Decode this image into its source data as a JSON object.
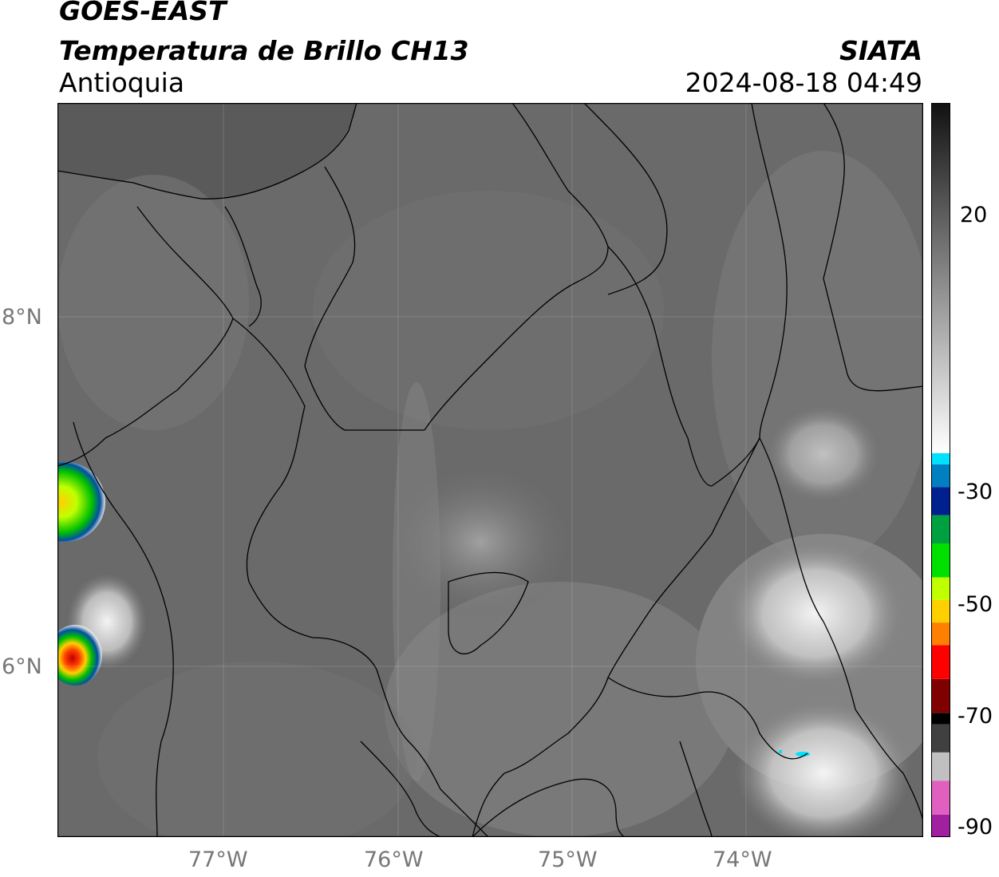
{
  "header": {
    "satellite": "GOES-EAST",
    "product": "Temperatura de Brillo CH13",
    "region": "Antioquia",
    "source": "SIATA",
    "timestamp": "2024-08-18 04:49"
  },
  "map": {
    "lon_range": [
      -77.97,
      -73.05
    ],
    "lat_range": [
      4.96,
      9.15
    ],
    "lon_ticks": [
      "77°W",
      "76°W",
      "75°W",
      "74°W"
    ],
    "lat_ticks": [
      "8°N",
      "6°N"
    ],
    "background_color": "#6a6a6a"
  },
  "colorbar": {
    "ticks": [
      "20",
      "-30",
      "-50",
      "-70",
      "-90"
    ],
    "unit_range": [
      -90,
      40
    ],
    "segments": [
      {
        "from": -90,
        "to": -86,
        "color": "#a0209f"
      },
      {
        "from": -86,
        "to": -80,
        "color": "#e060c0"
      },
      {
        "from": -80,
        "to": -75,
        "color": "#c0c0c0"
      },
      {
        "from": -75,
        "to": -70,
        "color": "#404040"
      },
      {
        "from": -70,
        "to": -68,
        "color": "#000000"
      },
      {
        "from": -68,
        "to": -62,
        "color": "#800000"
      },
      {
        "from": -62,
        "to": -56,
        "color": "#ff0000"
      },
      {
        "from": -56,
        "to": -52,
        "color": "#ff8000"
      },
      {
        "from": -52,
        "to": -48,
        "color": "#ffd000"
      },
      {
        "from": -48,
        "to": -44,
        "color": "#c0ff00"
      },
      {
        "from": -44,
        "to": -38,
        "color": "#00e000"
      },
      {
        "from": -38,
        "to": -33,
        "color": "#00a040"
      },
      {
        "from": -33,
        "to": -28,
        "color": "#002090"
      },
      {
        "from": -28,
        "to": -24,
        "color": "#0080c0"
      },
      {
        "from": -24,
        "to": -22,
        "color": "#00e0ff"
      },
      {
        "from": -22,
        "to": 40,
        "color": "gradient-white-to-black"
      }
    ]
  }
}
